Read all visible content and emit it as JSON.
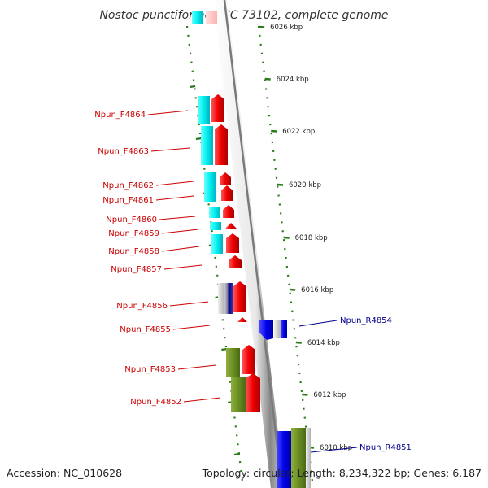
{
  "title": "Nostoc punctiforme PCC 73102, complete genome",
  "footer": {
    "accession": "Accession: NC_010628",
    "summary": "Topology: circular; Length: 8,234,322 bp; Genes: 6,187"
  },
  "colors": {
    "forward_label": "#cc0000",
    "reverse_label": "#00008b",
    "tick": "#2a7a1a",
    "backbone": "#999999",
    "cds_forward": "#ff0000",
    "cds_reverse": "#00ffff",
    "rna_reverse": "#0000ff",
    "green_feature": "#6b8e23"
  },
  "ticks": [
    "6026 kbp",
    "6024 kbp",
    "6022 kbp",
    "6020 kbp",
    "6018 kbp",
    "6016 kbp",
    "6014 kbp",
    "6012 kbp",
    "6010 kbp"
  ],
  "left_labels": [
    "Npun_F4864",
    "Npun_F4863",
    "Npun_F4862",
    "Npun_F4861",
    "Npun_F4860",
    "Npun_F4859",
    "Npun_F4858",
    "Npun_F4857",
    "Npun_F4856",
    "Npun_F4855",
    "Npun_F4853",
    "Npun_F4852"
  ],
  "right_labels": [
    "Npun_R4854",
    "Npun_R4851"
  ]
}
